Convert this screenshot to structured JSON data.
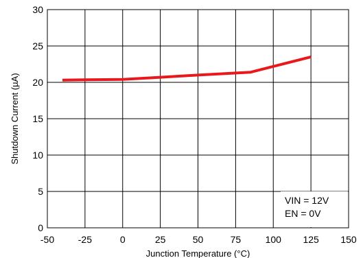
{
  "chart_data": {
    "type": "line",
    "title": "",
    "xlabel": "Junction Temperature (°C)",
    "ylabel": "Shutdown Current (µA)",
    "xlim": [
      -50,
      150
    ],
    "ylim": [
      0,
      30
    ],
    "xticks": [
      -50,
      -25,
      0,
      25,
      50,
      75,
      100,
      125,
      150
    ],
    "yticks": [
      0,
      5,
      10,
      15,
      20,
      25,
      30
    ],
    "xtick_labels": [
      "-50",
      "-25",
      "0",
      "25",
      "50",
      "75",
      "100",
      "125",
      "150"
    ],
    "ytick_labels": [
      "0",
      "5",
      "10",
      "15",
      "20",
      "25",
      "30"
    ],
    "grid": true,
    "series": [
      {
        "color": "#e8191c",
        "x": [
          -40,
          -25,
          0,
          25,
          50,
          85,
          125
        ],
        "y": [
          20.3,
          20.35,
          20.4,
          20.7,
          21.0,
          21.4,
          23.5
        ]
      }
    ],
    "annotations": [
      "VIN = 12V",
      "EN = 0V"
    ]
  }
}
